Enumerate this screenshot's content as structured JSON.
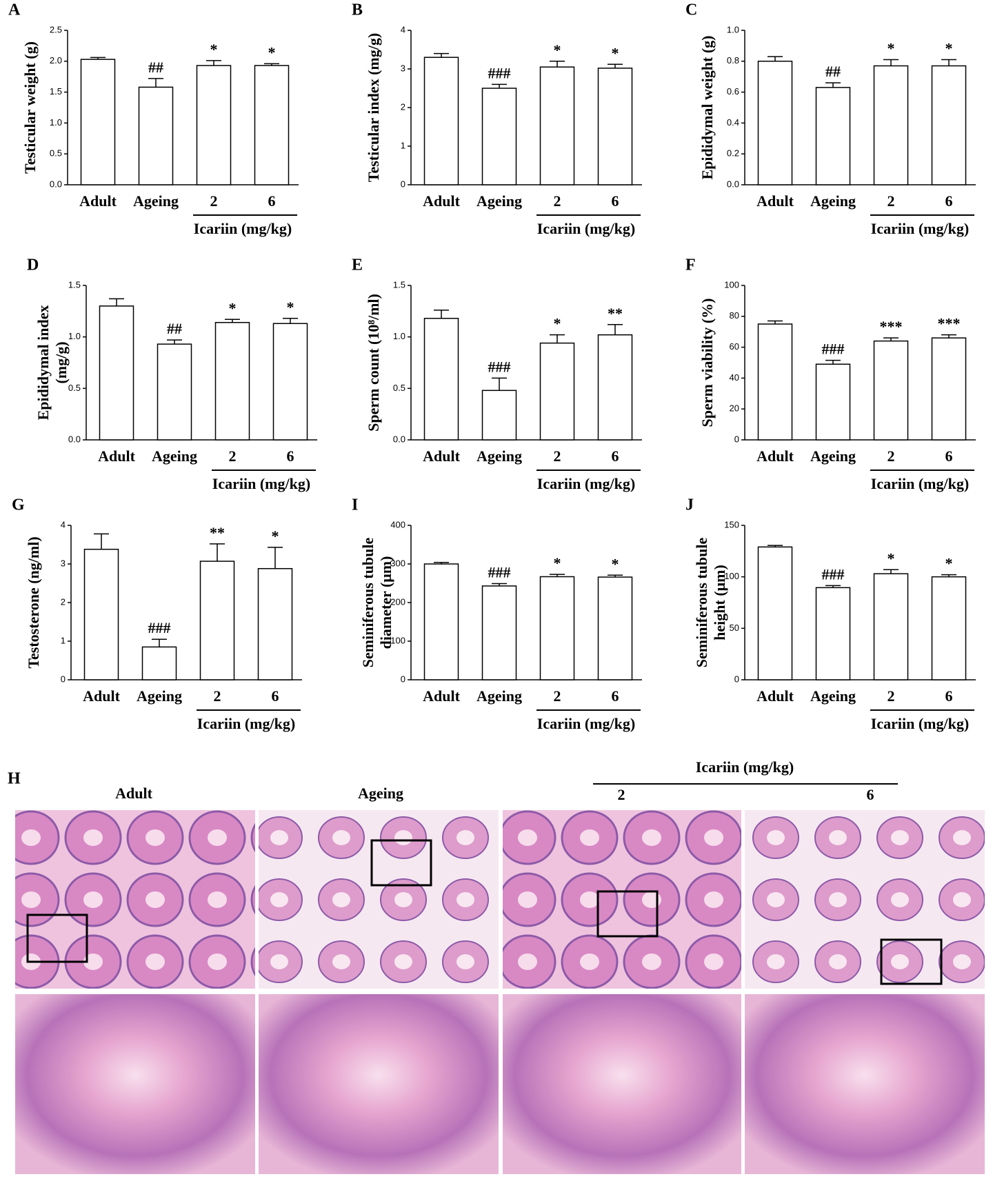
{
  "chart_data": [
    {
      "type": "bar",
      "panel": "A",
      "ylabel": "Testicular weight (g)",
      "categories": [
        "Adult",
        "Ageing",
        "2",
        "6"
      ],
      "group_label": "Icariin (mg/kg)",
      "values": [
        2.03,
        1.58,
        1.93,
        1.93
      ],
      "errors": [
        0.03,
        0.14,
        0.08,
        0.03
      ],
      "annotations": [
        null,
        "##",
        "*",
        "*"
      ],
      "ylim": [
        0,
        2.5
      ],
      "yticks": [
        {
          "value": 0,
          "label": "0.0"
        },
        0.5,
        {
          "value": 1,
          "label": "1.0"
        },
        1.5,
        {
          "value": 2,
          "label": "2.0"
        },
        2.5
      ],
      "color": "#ffffff"
    },
    {
      "type": "bar",
      "panel": "B",
      "ylabel": "Testicular index (mg/g)",
      "categories": [
        "Adult",
        "Ageing",
        "2",
        "6"
      ],
      "group_label": "Icariin (mg/kg)",
      "values": [
        3.3,
        2.5,
        3.05,
        3.02
      ],
      "errors": [
        0.1,
        0.1,
        0.15,
        0.1
      ],
      "annotations": [
        null,
        "###",
        "*",
        "*"
      ],
      "ylim": [
        0,
        4
      ],
      "yticks": [
        0,
        1,
        2,
        3,
        4
      ],
      "color": "#ffffff"
    },
    {
      "type": "bar",
      "panel": "C",
      "ylabel": "Epididymal weight (g)",
      "categories": [
        "Adult",
        "Ageing",
        "2",
        "6"
      ],
      "group_label": "Icariin (mg/kg)",
      "values": [
        0.8,
        0.63,
        0.77,
        0.77
      ],
      "errors": [
        0.03,
        0.03,
        0.04,
        0.04
      ],
      "annotations": [
        null,
        "##",
        "*",
        "*"
      ],
      "ylim": [
        0,
        1
      ],
      "yticks": [
        {
          "value": 0,
          "label": "0.0"
        },
        0.2,
        0.4,
        0.6,
        0.8,
        {
          "value": 1,
          "label": "1.0"
        }
      ],
      "color": "#ffffff"
    },
    {
      "type": "bar",
      "panel": "D",
      "ylabel": [
        "Epididymal index",
        "(mg/g)"
      ],
      "categories": [
        "Adult",
        "Ageing",
        "2",
        "6"
      ],
      "group_label": "Icariin (mg/kg)",
      "values": [
        1.3,
        0.93,
        1.14,
        1.13
      ],
      "errors": [
        0.07,
        0.04,
        0.03,
        0.05
      ],
      "annotations": [
        null,
        "##",
        "*",
        "*"
      ],
      "ylim": [
        0,
        1.5
      ],
      "yticks": [
        {
          "value": 0,
          "label": "0.0"
        },
        0.5,
        {
          "value": 1,
          "label": "1.0"
        },
        1.5
      ],
      "color": "#ffffff"
    },
    {
      "type": "bar",
      "panel": "E",
      "ylabel": "Sperm count (10⁸/ml)",
      "categories": [
        "Adult",
        "Ageing",
        "2",
        "6"
      ],
      "group_label": "Icariin (mg/kg)",
      "values": [
        1.18,
        0.48,
        0.94,
        1.02
      ],
      "errors": [
        0.08,
        0.12,
        0.08,
        0.1
      ],
      "annotations": [
        null,
        "###",
        "*",
        "**"
      ],
      "ylim": [
        0,
        1.5
      ],
      "yticks": [
        {
          "value": 0,
          "label": "0.0"
        },
        0.5,
        {
          "value": 1,
          "label": "1.0"
        },
        1.5
      ],
      "color": "#ffffff"
    },
    {
      "type": "bar",
      "panel": "F",
      "ylabel": "Sperm viability (%)",
      "categories": [
        "Adult",
        "Ageing",
        "2",
        "6"
      ],
      "group_label": "Icariin (mg/kg)",
      "values": [
        75,
        49,
        64,
        66
      ],
      "errors": [
        2,
        2.5,
        2,
        2
      ],
      "annotations": [
        null,
        "###",
        "***",
        "***"
      ],
      "ylim": [
        0,
        100
      ],
      "yticks": [
        0,
        20,
        40,
        60,
        80,
        100
      ],
      "color": "#ffffff"
    },
    {
      "type": "bar",
      "panel": "G",
      "ylabel": "Testosterone (ng/ml)",
      "categories": [
        "Adult",
        "Ageing",
        "2",
        "6"
      ],
      "group_label": "Icariin (mg/kg)",
      "values": [
        3.38,
        0.85,
        3.07,
        2.88
      ],
      "errors": [
        0.4,
        0.2,
        0.45,
        0.55
      ],
      "annotations": [
        null,
        "###",
        "**",
        "*"
      ],
      "ylim": [
        0,
        4
      ],
      "yticks": [
        0,
        1,
        2,
        3,
        4
      ],
      "color": "#ffffff"
    },
    {
      "type": "bar",
      "panel": "I",
      "ylabel": [
        "Seminiferous tubule",
        "diameter (μm)"
      ],
      "categories": [
        "Adult",
        "Ageing",
        "2",
        "6"
      ],
      "group_label": "Icariin (mg/kg)",
      "values": [
        300,
        243,
        267,
        266
      ],
      "errors": [
        4,
        6,
        6,
        5
      ],
      "annotations": [
        null,
        "###",
        "*",
        "*"
      ],
      "ylim": [
        0,
        400
      ],
      "yticks": [
        0,
        100,
        200,
        300,
        400
      ],
      "color": "#ffffff"
    },
    {
      "type": "bar",
      "panel": "J",
      "ylabel": [
        "Seminiferous tubule",
        "height (μm)"
      ],
      "categories": [
        "Adult",
        "Ageing",
        "2",
        "6"
      ],
      "group_label": "Icariin (mg/kg)",
      "values": [
        129,
        89.5,
        103,
        100
      ],
      "errors": [
        1.5,
        2,
        4,
        2
      ],
      "annotations": [
        null,
        "###",
        "*",
        "*"
      ],
      "ylim": [
        0,
        150
      ],
      "yticks": [
        0,
        50,
        100,
        150
      ],
      "color": "#ffffff"
    }
  ],
  "histology": {
    "label": "H",
    "group_label": "Icariin (mg/kg)",
    "columns": [
      "Adult",
      "Ageing",
      "2",
      "6"
    ]
  }
}
